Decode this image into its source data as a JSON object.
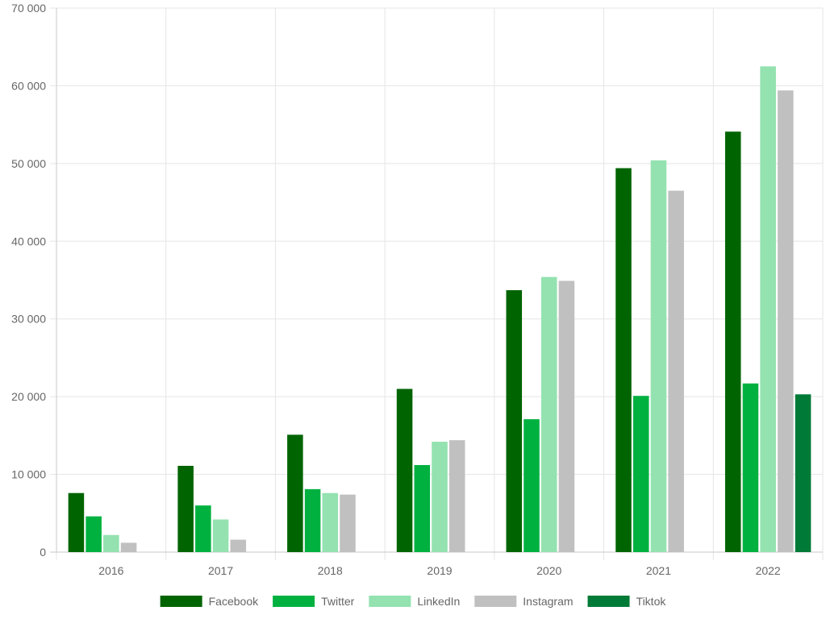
{
  "chart_data": {
    "type": "bar",
    "title": "",
    "xlabel": "",
    "ylabel": "",
    "categories": [
      "2016",
      "2017",
      "2018",
      "2019",
      "2020",
      "2021",
      "2022"
    ],
    "ylim": [
      0,
      70000
    ],
    "y_ticks": [
      0,
      10000,
      20000,
      30000,
      40000,
      50000,
      60000,
      70000
    ],
    "y_tick_labels": [
      "0",
      "10 000",
      "20 000",
      "30 000",
      "40 000",
      "50 000",
      "60 000",
      "70 000"
    ],
    "grid": true,
    "legend_position": "bottom",
    "series": [
      {
        "name": "Facebook",
        "color": "#006400",
        "values": [
          7600,
          11100,
          15100,
          21000,
          33700,
          49400,
          54100
        ]
      },
      {
        "name": "Twitter",
        "color": "#00b140",
        "values": [
          4600,
          6000,
          8100,
          11200,
          17100,
          20100,
          21700
        ]
      },
      {
        "name": "LinkedIn",
        "color": "#93e2b0",
        "values": [
          2200,
          4200,
          7600,
          14200,
          35400,
          50400,
          62500
        ]
      },
      {
        "name": "Instagram",
        "color": "#c0c0c0",
        "values": [
          1200,
          1600,
          7400,
          14400,
          34900,
          46500,
          59400
        ]
      },
      {
        "name": "Tiktok",
        "color": "#007a37",
        "values": [
          0,
          0,
          0,
          0,
          0,
          0,
          20300
        ]
      }
    ]
  }
}
